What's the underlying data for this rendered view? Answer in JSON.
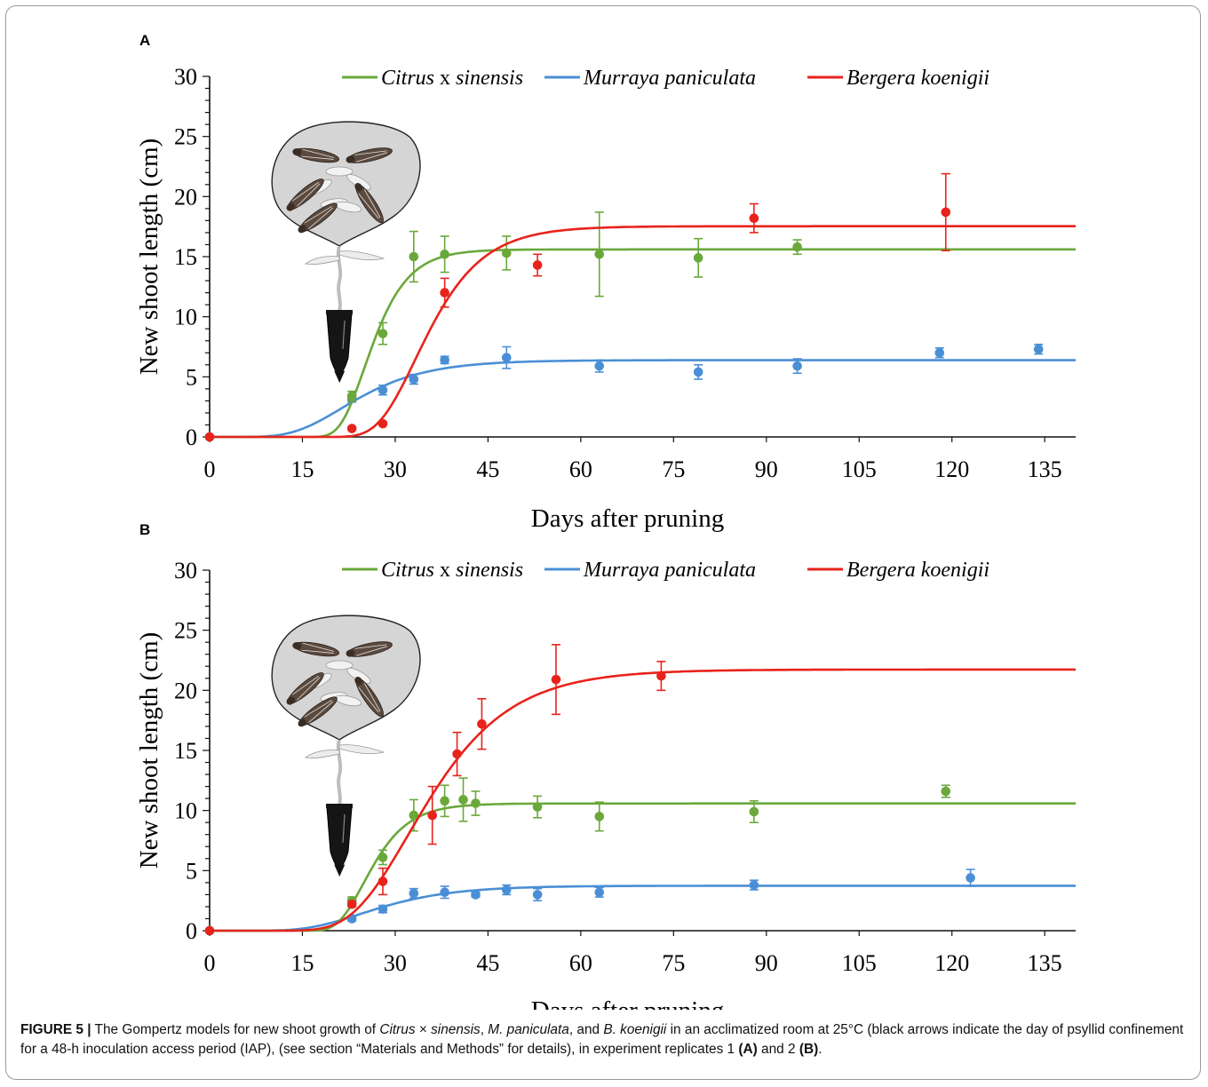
{
  "figure": {
    "caption": {
      "label": "FIGURE 5 |",
      "segments": [
        {
          "t": " The Gompertz models for new shoot growth of "
        },
        {
          "t": "Citrus",
          "i": true
        },
        {
          "t": " × "
        },
        {
          "t": "sinensis",
          "i": true
        },
        {
          "t": ", "
        },
        {
          "t": "M. paniculata",
          "i": true
        },
        {
          "t": ", and "
        },
        {
          "t": "B. koenigii",
          "i": true
        },
        {
          "t": " in an acclimatized room at 25°C (black arrows indicate the day of psyllid confinement for a 48-h inoculation access period (IAP), (see section “Materials and Methods” for details), in experiment replicates 1 "
        },
        {
          "t": "(A)",
          "b": true
        },
        {
          "t": " and 2 "
        },
        {
          "t": "(B)",
          "b": true
        },
        {
          "t": "."
        }
      ]
    }
  },
  "colors": {
    "citrus": "#6aa83a",
    "murraya": "#4a8fd6",
    "bergera": "#e8231c",
    "axis": "#111111",
    "arrow": "#111111",
    "bag_fill": "#d5d5d5",
    "psyllid": "#5a4a40"
  },
  "chart_data": [
    {
      "panel_label": "A",
      "type": "scatter",
      "xlabel": "Days after pruning",
      "ylabel": "New shoot length (cm)",
      "xlim": [
        0,
        140
      ],
      "ylim": [
        0,
        30
      ],
      "xticks": [
        0,
        15,
        30,
        45,
        60,
        75,
        90,
        105,
        120,
        135
      ],
      "yticks": [
        0,
        5,
        10,
        15,
        20,
        25,
        30
      ],
      "grid": false,
      "legend_position": "top-center",
      "arrow_day": 21,
      "series": [
        {
          "key": "citrus",
          "name_italic": "Citrus",
          "name_mid": " x ",
          "name_italic2": "sinensis",
          "points": [
            {
              "x": 0,
              "y": 0,
              "err": 0
            },
            {
              "x": 23,
              "y": 3.4,
              "err": 0.4
            },
            {
              "x": 28,
              "y": 8.6,
              "err": 0.9
            },
            {
              "x": 33,
              "y": 15.0,
              "err": 2.1
            },
            {
              "x": 38,
              "y": 15.2,
              "err": 1.5
            },
            {
              "x": 48,
              "y": 15.3,
              "err": 1.4
            },
            {
              "x": 63,
              "y": 15.2,
              "err": 3.5
            },
            {
              "x": 79,
              "y": 14.9,
              "err": 1.6
            },
            {
              "x": 95,
              "y": 15.8,
              "err": 0.6
            }
          ]
        },
        {
          "key": "murraya",
          "name_italic": "Murraya paniculata",
          "name_mid": "",
          "name_italic2": "",
          "points": [
            {
              "x": 0,
              "y": 0,
              "err": 0
            },
            {
              "x": 23,
              "y": 3.2,
              "err": 0.3
            },
            {
              "x": 28,
              "y": 3.9,
              "err": 0.4
            },
            {
              "x": 33,
              "y": 4.8,
              "err": 0.4
            },
            {
              "x": 38,
              "y": 6.4,
              "err": 0.3
            },
            {
              "x": 48,
              "y": 6.6,
              "err": 0.9
            },
            {
              "x": 63,
              "y": 5.9,
              "err": 0.5
            },
            {
              "x": 79,
              "y": 5.4,
              "err": 0.6
            },
            {
              "x": 95,
              "y": 5.9,
              "err": 0.6
            },
            {
              "x": 118,
              "y": 7.0,
              "err": 0.4
            },
            {
              "x": 134,
              "y": 7.3,
              "err": 0.4
            }
          ]
        },
        {
          "key": "bergera",
          "name_italic": "Bergera koenigii",
          "name_mid": "",
          "name_italic2": "",
          "points": [
            {
              "x": 0,
              "y": 0,
              "err": 0
            },
            {
              "x": 23,
              "y": 0.7,
              "err": 0
            },
            {
              "x": 28,
              "y": 1.1,
              "err": 0
            },
            {
              "x": 38,
              "y": 12.0,
              "err": 1.2
            },
            {
              "x": 53,
              "y": 14.3,
              "err": 0.9
            },
            {
              "x": 88,
              "y": 18.2,
              "err": 1.2
            },
            {
              "x": 119,
              "y": 18.7,
              "err": 3.2
            }
          ]
        }
      ]
    },
    {
      "panel_label": "B",
      "type": "scatter",
      "xlabel": "Days after pruning",
      "ylabel": "New shoot length (cm)",
      "xlim": [
        0,
        140
      ],
      "ylim": [
        0,
        30
      ],
      "xticks": [
        0,
        15,
        30,
        45,
        60,
        75,
        90,
        105,
        120,
        135
      ],
      "yticks": [
        0,
        5,
        10,
        15,
        20,
        25,
        30
      ],
      "grid": false,
      "legend_position": "top-center",
      "arrow_day": 21,
      "series": [
        {
          "key": "citrus",
          "name_italic": "Citrus",
          "name_mid": " x ",
          "name_italic2": "sinensis",
          "points": [
            {
              "x": 0,
              "y": 0,
              "err": 0
            },
            {
              "x": 23,
              "y": 2.5,
              "err": 0.3
            },
            {
              "x": 28,
              "y": 6.1,
              "err": 0.6
            },
            {
              "x": 33,
              "y": 9.6,
              "err": 1.3
            },
            {
              "x": 38,
              "y": 10.8,
              "err": 1.3
            },
            {
              "x": 41,
              "y": 10.9,
              "err": 1.8
            },
            {
              "x": 43,
              "y": 10.6,
              "err": 1.0
            },
            {
              "x": 53,
              "y": 10.3,
              "err": 0.9
            },
            {
              "x": 63,
              "y": 9.5,
              "err": 1.2
            },
            {
              "x": 88,
              "y": 9.9,
              "err": 0.9
            },
            {
              "x": 119,
              "y": 11.6,
              "err": 0.5
            }
          ]
        },
        {
          "key": "murraya",
          "name_italic": "Murraya paniculata",
          "name_mid": "",
          "name_italic2": "",
          "points": [
            {
              "x": 0,
              "y": 0,
              "err": 0
            },
            {
              "x": 23,
              "y": 1.0,
              "err": 0.2
            },
            {
              "x": 28,
              "y": 1.8,
              "err": 0.3
            },
            {
              "x": 33,
              "y": 3.1,
              "err": 0.4
            },
            {
              "x": 38,
              "y": 3.2,
              "err": 0.5
            },
            {
              "x": 43,
              "y": 3.0,
              "err": 0.2
            },
            {
              "x": 48,
              "y": 3.4,
              "err": 0.4
            },
            {
              "x": 53,
              "y": 3.0,
              "err": 0.5
            },
            {
              "x": 63,
              "y": 3.2,
              "err": 0.4
            },
            {
              "x": 88,
              "y": 3.8,
              "err": 0.4
            },
            {
              "x": 123,
              "y": 4.4,
              "err": 0.7
            }
          ]
        },
        {
          "key": "bergera",
          "name_italic": "Bergera koenigii",
          "name_mid": "",
          "name_italic2": "",
          "points": [
            {
              "x": 0,
              "y": 0,
              "err": 0
            },
            {
              "x": 23,
              "y": 2.2,
              "err": 0.2
            },
            {
              "x": 28,
              "y": 4.1,
              "err": 1.1
            },
            {
              "x": 36,
              "y": 9.6,
              "err": 2.4
            },
            {
              "x": 40,
              "y": 14.7,
              "err": 1.8
            },
            {
              "x": 44,
              "y": 17.2,
              "err": 2.1
            },
            {
              "x": 56,
              "y": 20.9,
              "err": 2.9
            },
            {
              "x": 73,
              "y": 21.2,
              "err": 1.2
            }
          ]
        }
      ]
    }
  ]
}
